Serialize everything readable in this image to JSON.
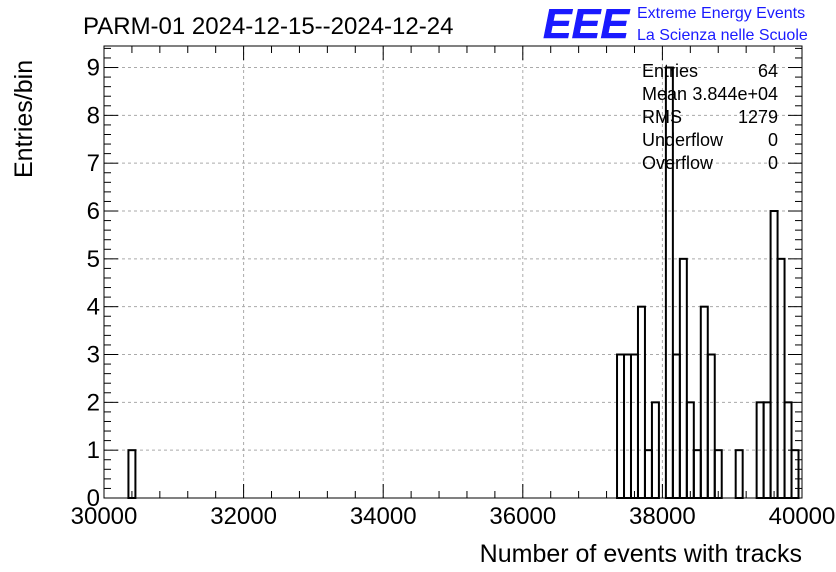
{
  "chart_data": {
    "type": "histogram",
    "title": "PARM-01 2024-12-15--2024-12-24",
    "xlabel": "Number of events with tracks",
    "ylabel": "Entries/bin",
    "xlim": [
      30000,
      40000
    ],
    "ylim": [
      0,
      9.45
    ],
    "x_ticks": [
      "30000",
      "32000",
      "34000",
      "36000",
      "38000",
      "40000"
    ],
    "y_ticks": [
      "0",
      "1",
      "2",
      "3",
      "4",
      "5",
      "6",
      "7",
      "8",
      "9"
    ],
    "grid": true,
    "bin_width": 100,
    "bins": [
      {
        "x": 30400,
        "y": 1
      },
      {
        "x": 37400,
        "y": 3
      },
      {
        "x": 37500,
        "y": 3
      },
      {
        "x": 37600,
        "y": 3
      },
      {
        "x": 37700,
        "y": 4
      },
      {
        "x": 37800,
        "y": 1
      },
      {
        "x": 37900,
        "y": 2
      },
      {
        "x": 38000,
        "y": 0
      },
      {
        "x": 38100,
        "y": 9
      },
      {
        "x": 38200,
        "y": 3
      },
      {
        "x": 38300,
        "y": 5
      },
      {
        "x": 38400,
        "y": 2
      },
      {
        "x": 38500,
        "y": 1
      },
      {
        "x": 38600,
        "y": 4
      },
      {
        "x": 38700,
        "y": 3
      },
      {
        "x": 38800,
        "y": 1
      },
      {
        "x": 38900,
        "y": 0
      },
      {
        "x": 39000,
        "y": 0
      },
      {
        "x": 39100,
        "y": 1
      },
      {
        "x": 39200,
        "y": 0
      },
      {
        "x": 39300,
        "y": 0
      },
      {
        "x": 39400,
        "y": 2
      },
      {
        "x": 39500,
        "y": 2
      },
      {
        "x": 39600,
        "y": 6
      },
      {
        "x": 39700,
        "y": 5
      },
      {
        "x": 39800,
        "y": 2
      },
      {
        "x": 39900,
        "y": 1
      },
      {
        "x": 40000,
        "y": 0
      }
    ],
    "stats": [
      {
        "label": "Entries",
        "value": "64"
      },
      {
        "label": "Mean",
        "value": "3.844e+04"
      },
      {
        "label": "RMS",
        "value": "1279"
      },
      {
        "label": "Underflow",
        "value": "0"
      },
      {
        "label": "Overflow",
        "value": "0"
      }
    ]
  },
  "logo": {
    "mark": "EEE",
    "line1": "Extreme Energy Events",
    "line2": "La Scienza nelle Scuole",
    "color": "#1a1aff"
  }
}
